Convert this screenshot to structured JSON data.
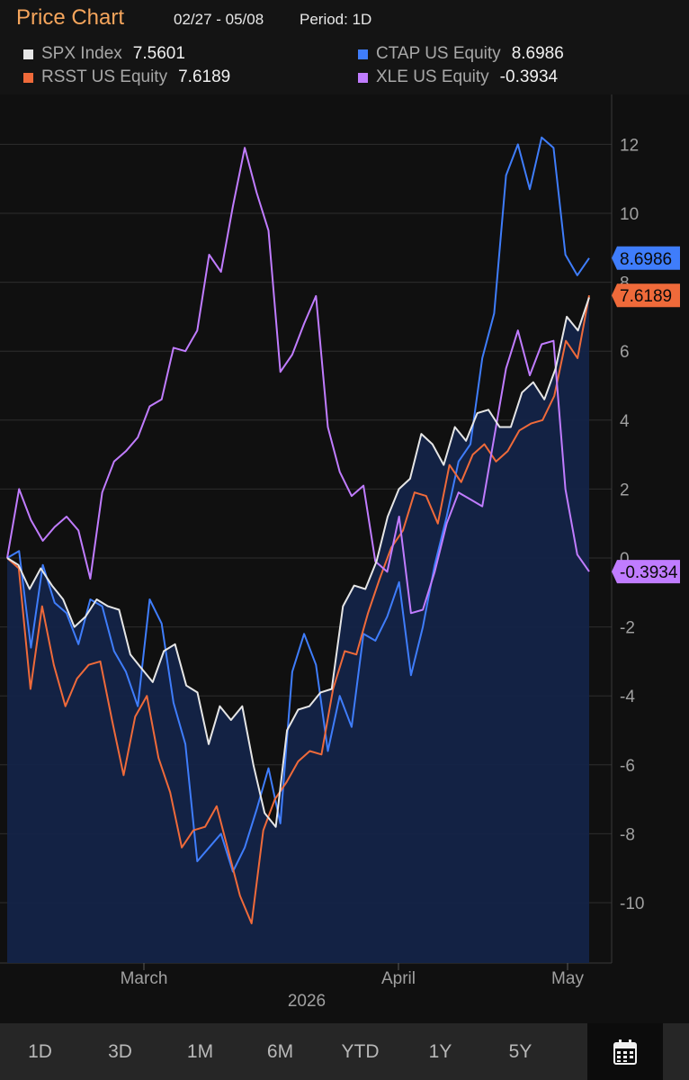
{
  "header": {
    "title": "Price Chart",
    "date_range": "02/27 - 05/08",
    "period": "Period: 1D"
  },
  "legend": [
    {
      "name": "SPX Index",
      "value": "7.5601",
      "color": "#e6e6e6"
    },
    {
      "name": "CTAP US Equity",
      "value": "8.6986",
      "color": "#3f7dfb"
    },
    {
      "name": "RSST US Equity",
      "value": "7.6189",
      "color": "#ef6a3a"
    },
    {
      "name": "XLE US Equity",
      "value": "-0.3934",
      "color": "#c07cff"
    }
  ],
  "footer": {
    "buttons": [
      "1D",
      "3D",
      "1M",
      "6M",
      "YTD",
      "1Y",
      "5Y"
    ],
    "calendar_icon": "calendar-icon"
  },
  "chart_data": {
    "type": "line",
    "title": "Price Chart",
    "x_range": [
      "02/27",
      "05/08"
    ],
    "xaxis_ticks": [
      "March",
      "April",
      "May"
    ],
    "xaxis_year": "2026",
    "ylim": [
      -11.5,
      13
    ],
    "yticks": [
      12,
      10,
      8,
      6,
      4,
      2,
      0,
      -2,
      -4,
      -6,
      -8,
      -10
    ],
    "grid": true,
    "legend_position": "top",
    "filled_series": "SPX Index",
    "series": [
      {
        "name": "SPX Index",
        "color": "#e6e6e6",
        "last_label": "",
        "values": [
          0,
          -0.2,
          -0.9,
          -0.3,
          -0.8,
          -1.2,
          -2.0,
          -1.7,
          -1.2,
          -1.4,
          -1.5,
          -2.8,
          -3.2,
          -3.6,
          -2.7,
          -2.5,
          -3.7,
          -3.9,
          -5.4,
          -4.3,
          -4.7,
          -4.3,
          -6.0,
          -7.4,
          -7.8,
          -5.0,
          -4.4,
          -4.3,
          -3.9,
          -3.8,
          -1.4,
          -0.8,
          -0.9,
          -0.1,
          1.2,
          2.0,
          2.3,
          3.6,
          3.3,
          2.7,
          3.8,
          3.4,
          4.2,
          4.3,
          3.8,
          3.8,
          4.8,
          5.1,
          4.6,
          5.5,
          7.0,
          6.6,
          7.56
        ]
      },
      {
        "name": "CTAP US Equity",
        "color": "#3f7dfb",
        "last_label": "8.6986",
        "values": [
          0,
          0.2,
          -2.6,
          -0.2,
          -1.3,
          -1.6,
          -2.5,
          -1.2,
          -1.4,
          -2.7,
          -3.3,
          -4.3,
          -1.2,
          -1.9,
          -4.2,
          -5.4,
          -8.8,
          -8.4,
          -8.0,
          -9.1,
          -8.4,
          -7.3,
          -6.1,
          -7.7,
          -3.3,
          -2.2,
          -3.1,
          -5.6,
          -4.0,
          -4.9,
          -2.2,
          -2.4,
          -1.7,
          -0.7,
          -3.4,
          -2.0,
          -0.2,
          1.2,
          2.8,
          3.3,
          5.8,
          7.1,
          11.1,
          12.0,
          10.7,
          12.2,
          11.9,
          8.8,
          8.2,
          8.7
        ]
      },
      {
        "name": "RSST US Equity",
        "color": "#ef6a3a",
        "last_label": "7.6189",
        "values": [
          0,
          -0.3,
          -3.8,
          -1.4,
          -3.1,
          -4.3,
          -3.5,
          -3.1,
          -3.0,
          -4.7,
          -6.3,
          -4.6,
          -4.0,
          -5.8,
          -6.8,
          -8.4,
          -7.9,
          -7.8,
          -7.2,
          -8.5,
          -9.8,
          -10.6,
          -7.9,
          -7.0,
          -6.5,
          -5.9,
          -5.6,
          -5.7,
          -3.8,
          -2.7,
          -2.8,
          -1.6,
          -0.6,
          0.3,
          0.8,
          1.9,
          1.8,
          1.0,
          2.7,
          2.2,
          3.0,
          3.3,
          2.8,
          3.1,
          3.7,
          3.9,
          4.0,
          4.7,
          6.3,
          5.8,
          7.6189
        ]
      },
      {
        "name": "XLE US Equity",
        "color": "#c07cff",
        "last_label": "-0.3934",
        "values": [
          0,
          2.0,
          1.1,
          0.5,
          0.9,
          1.2,
          0.8,
          -0.6,
          1.9,
          2.8,
          3.1,
          3.5,
          4.4,
          4.6,
          6.1,
          6.0,
          6.6,
          8.8,
          8.3,
          10.2,
          11.9,
          10.6,
          9.5,
          5.4,
          5.9,
          6.8,
          7.6,
          3.8,
          2.5,
          1.8,
          2.1,
          -0.1,
          -0.4,
          1.2,
          -1.6,
          -1.5,
          -0.4,
          1.0,
          1.9,
          1.7,
          1.5,
          3.5,
          5.5,
          6.6,
          5.3,
          6.2,
          6.3,
          2.0,
          0.1,
          -0.3934
        ]
      }
    ]
  }
}
